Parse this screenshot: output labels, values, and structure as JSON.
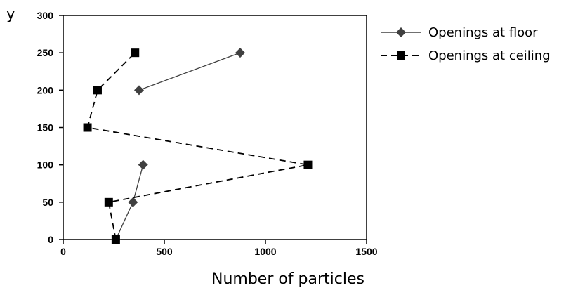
{
  "chart_data": {
    "type": "line",
    "title": "",
    "xlabel": "Number of particles",
    "ylabel": "y",
    "xlim": [
      0,
      1500
    ],
    "ylim": [
      0,
      300
    ],
    "xticks": [
      0,
      500,
      1000,
      1500
    ],
    "yticks": [
      0,
      50,
      100,
      150,
      200,
      250,
      300
    ],
    "grid": false,
    "legend_position": "right",
    "series": [
      {
        "name": "Openings at floor",
        "marker": "diamond",
        "line_style": "solid",
        "color": "#404040",
        "segments": [
          [
            {
              "x": 260,
              "y": 0
            },
            {
              "x": 345,
              "y": 50
            },
            {
              "x": 395,
              "y": 100
            }
          ],
          [
            {
              "x": 375,
              "y": 200
            },
            {
              "x": 875,
              "y": 250
            }
          ]
        ]
      },
      {
        "name": "Openings at ceiling",
        "marker": "square",
        "line_style": "dashed",
        "color": "#000000",
        "segments": [
          [
            {
              "x": 260,
              "y": 0
            },
            {
              "x": 225,
              "y": 50
            },
            {
              "x": 1210,
              "y": 100
            },
            {
              "x": 120,
              "y": 150
            },
            {
              "x": 170,
              "y": 200
            },
            {
              "x": 355,
              "y": 250
            }
          ]
        ]
      }
    ]
  }
}
